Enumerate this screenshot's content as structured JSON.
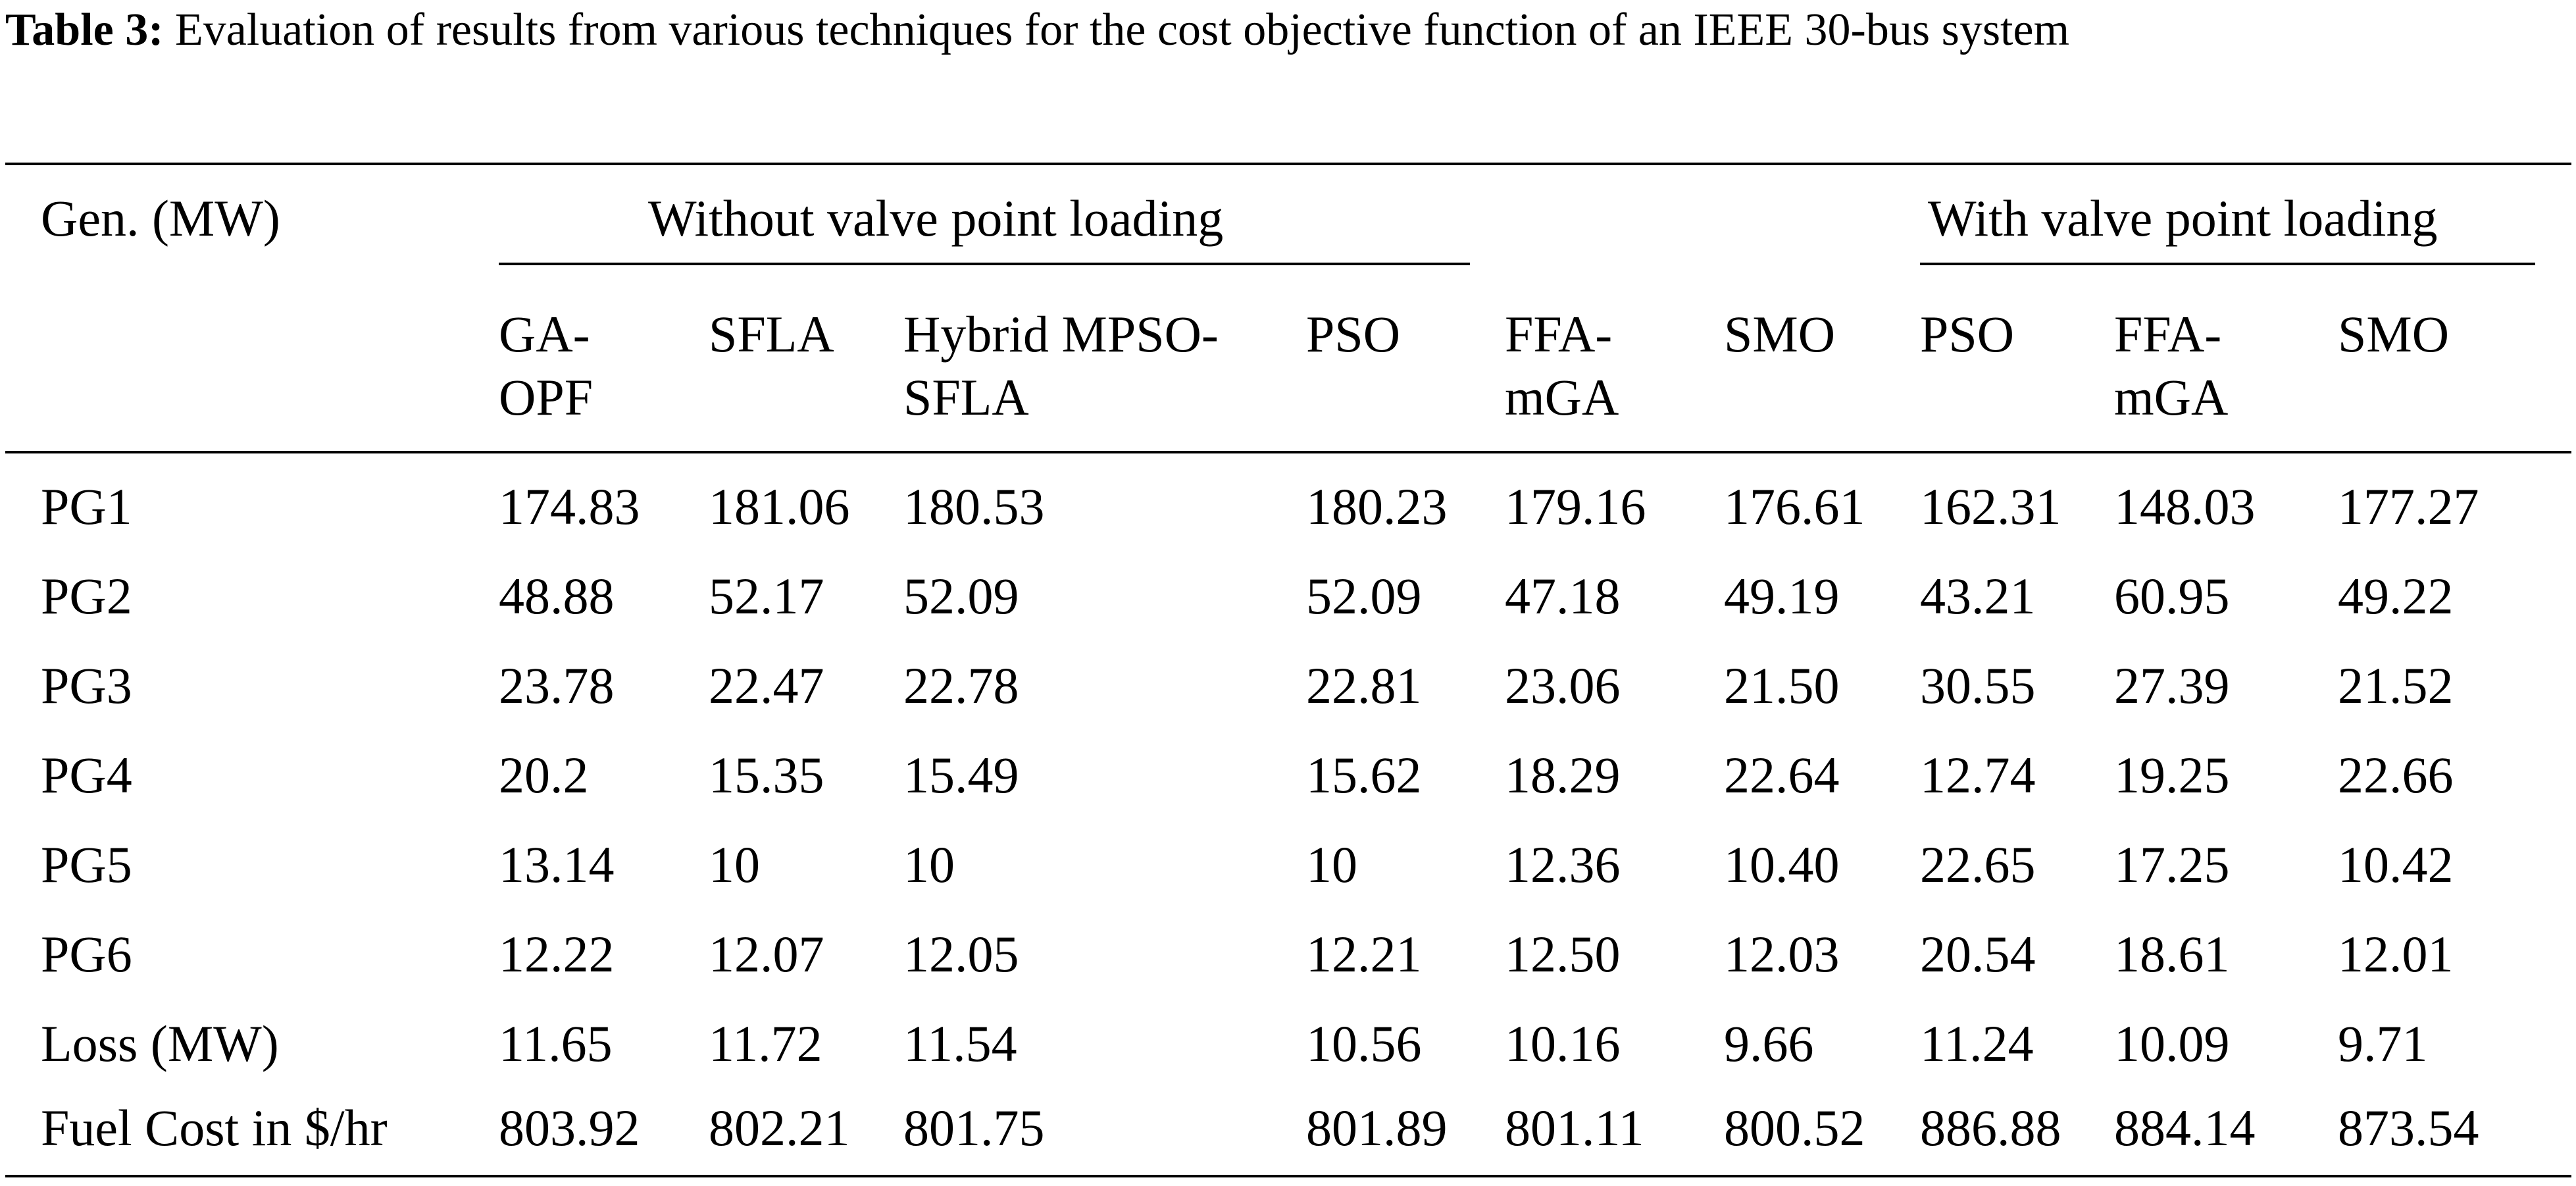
{
  "caption": {
    "label": "Table 3:",
    "text": "Evaluation of results from various techniques for the cost objective function of an IEEE 30-bus system"
  },
  "header": {
    "row_label": "Gen. (MW)",
    "group_without": "Without valve point loading",
    "group_with": "With valve point loading",
    "columns": [
      {
        "line1": "GA-",
        "line2": "OPF"
      },
      {
        "line1": "SFLA",
        "line2": ""
      },
      {
        "line1": "Hybrid MPSO-",
        "line2": "SFLA"
      },
      {
        "line1": "PSO",
        "line2": ""
      },
      {
        "line1": "FFA-",
        "line2": "mGA"
      },
      {
        "line1": "SMO",
        "line2": ""
      },
      {
        "line1": "PSO",
        "line2": ""
      },
      {
        "line1": "FFA-",
        "line2": "mGA"
      },
      {
        "line1": "SMO",
        "line2": ""
      }
    ]
  },
  "rows": [
    {
      "label": "PG1",
      "values": [
        "174.83",
        "181.06",
        "180.53",
        "180.23",
        "179.16",
        "176.61",
        "162.31",
        "148.03",
        "177.27"
      ]
    },
    {
      "label": "PG2",
      "values": [
        "48.88",
        "52.17",
        "52.09",
        "52.09",
        "47.18",
        "49.19",
        "43.21",
        "60.95",
        "49.22"
      ]
    },
    {
      "label": "PG3",
      "values": [
        "23.78",
        "22.47",
        "22.78",
        "22.81",
        "23.06",
        "21.50",
        "30.55",
        "27.39",
        "21.52"
      ]
    },
    {
      "label": "PG4",
      "values": [
        "20.2",
        "15.35",
        "15.49",
        "15.62",
        "18.29",
        "22.64",
        "12.74",
        "19.25",
        "22.66"
      ]
    },
    {
      "label": "PG5",
      "values": [
        "13.14",
        "10",
        "10",
        "10",
        "12.36",
        "10.40",
        "22.65",
        "17.25",
        "10.42"
      ]
    },
    {
      "label": "PG6",
      "values": [
        "12.22",
        "12.07",
        "12.05",
        "12.21",
        "12.50",
        "12.03",
        "20.54",
        "18.61",
        "12.01"
      ]
    },
    {
      "label": "Loss (MW)",
      "values": [
        "11.65",
        "11.72",
        "11.54",
        "10.56",
        "10.16",
        "9.66",
        "11.24",
        "10.09",
        "9.71"
      ]
    },
    {
      "label": "Fuel Cost in $/hr",
      "values": [
        "803.92",
        "802.21",
        "801.75",
        "801.89",
        "801.11",
        "800.52",
        "886.88",
        "884.14",
        "873.54"
      ]
    }
  ]
}
